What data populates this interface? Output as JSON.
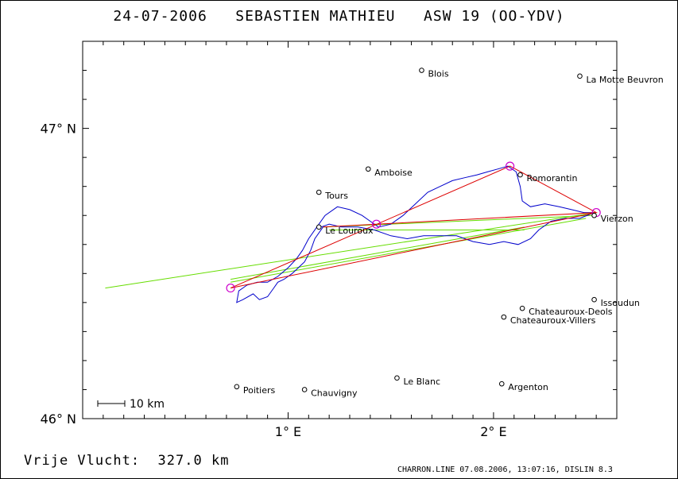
{
  "title": "24-07-2006   SEBASTIEN MATHIEU   ASW 19 (OO-YDV)",
  "footer": {
    "distance_label": "Vrije Vlucht:",
    "distance_value": "327.0 km",
    "credit": "CHARRON.LINE 07.08.2006, 13:07:16, DISLIN 8.3"
  },
  "scale_bar_label": "10 km",
  "colors": {
    "track": "#0000cc",
    "task": "#dd0000",
    "optimization": "#66dd00",
    "turnpoint": "#cc00cc",
    "axis": "#000000"
  },
  "chart_data": {
    "type": "map",
    "xlim": [
      0.0,
      2.6
    ],
    "ylim": [
      46.0,
      47.3
    ],
    "x_ticks": [
      {
        "value": 1.0,
        "label": "1° E"
      },
      {
        "value": 2.0,
        "label": "2° E"
      }
    ],
    "y_ticks": [
      {
        "value": 47.0,
        "label": "47° N"
      },
      {
        "value": 46.0,
        "label": "46° N"
      }
    ],
    "cities": [
      {
        "name": "Blois",
        "lon": 1.65,
        "lat": 47.2
      },
      {
        "name": "La Motte Beuvron",
        "lon": 2.42,
        "lat": 47.18
      },
      {
        "name": "Amboise",
        "lon": 1.39,
        "lat": 46.86
      },
      {
        "name": "Romorantin",
        "lon": 2.13,
        "lat": 46.84
      },
      {
        "name": "Tours",
        "lon": 1.15,
        "lat": 46.78
      },
      {
        "name": "Vierzon",
        "lon": 2.49,
        "lat": 46.7
      },
      {
        "name": "Le Louroux",
        "lon": 1.15,
        "lat": 46.66
      },
      {
        "name": "Issoudun",
        "lon": 2.49,
        "lat": 46.41
      },
      {
        "name": "Chateauroux-Deols",
        "lon": 2.14,
        "lat": 46.38
      },
      {
        "name": "Chateauroux-Villers",
        "lon": 2.05,
        "lat": 46.35
      },
      {
        "name": "Le Blanc",
        "lon": 1.53,
        "lat": 46.14
      },
      {
        "name": "Argenton",
        "lon": 2.04,
        "lat": 46.12
      },
      {
        "name": "Poitiers",
        "lon": 0.75,
        "lat": 46.11
      },
      {
        "name": "Chauvigny",
        "lon": 1.08,
        "lat": 46.1
      }
    ],
    "turnpoints": [
      {
        "lon": 0.72,
        "lat": 46.45
      },
      {
        "lon": 1.43,
        "lat": 46.67
      },
      {
        "lon": 2.08,
        "lat": 46.87
      },
      {
        "lon": 2.5,
        "lat": 46.71
      }
    ],
    "task_route": [
      {
        "lon": 0.72,
        "lat": 46.45
      },
      {
        "lon": 2.08,
        "lat": 46.87
      },
      {
        "lon": 2.5,
        "lat": 46.71
      },
      {
        "lon": 1.43,
        "lat": 46.67
      },
      {
        "lon": 1.17,
        "lat": 46.66
      },
      {
        "lon": 2.5,
        "lat": 46.71
      },
      {
        "lon": 0.72,
        "lat": 46.45
      }
    ],
    "optimization_lines": [
      [
        {
          "lon": 0.11,
          "lat": 46.45
        },
        {
          "lon": 2.5,
          "lat": 46.71
        }
      ],
      [
        {
          "lon": 0.72,
          "lat": 46.47
        },
        {
          "lon": 2.45,
          "lat": 46.69
        }
      ],
      [
        {
          "lon": 0.72,
          "lat": 46.48
        },
        {
          "lon": 2.15,
          "lat": 46.66
        }
      ],
      [
        {
          "lon": 1.17,
          "lat": 46.66
        },
        {
          "lon": 2.48,
          "lat": 46.7
        }
      ],
      [
        {
          "lon": 1.2,
          "lat": 46.65
        },
        {
          "lon": 2.15,
          "lat": 46.65
        }
      ]
    ],
    "flight_track": [
      {
        "lon": 1.17,
        "lat": 46.66
      },
      {
        "lon": 1.13,
        "lat": 46.62
      },
      {
        "lon": 1.11,
        "lat": 46.58
      },
      {
        "lon": 1.08,
        "lat": 46.54
      },
      {
        "lon": 1.05,
        "lat": 46.52
      },
      {
        "lon": 1.02,
        "lat": 46.5
      },
      {
        "lon": 0.98,
        "lat": 46.48
      },
      {
        "lon": 0.95,
        "lat": 46.47
      },
      {
        "lon": 0.93,
        "lat": 46.45
      },
      {
        "lon": 0.9,
        "lat": 46.42
      },
      {
        "lon": 0.86,
        "lat": 46.41
      },
      {
        "lon": 0.83,
        "lat": 46.43
      },
      {
        "lon": 0.78,
        "lat": 46.41
      },
      {
        "lon": 0.75,
        "lat": 46.4
      },
      {
        "lon": 0.76,
        "lat": 46.44
      },
      {
        "lon": 0.8,
        "lat": 46.46
      },
      {
        "lon": 0.85,
        "lat": 46.47
      },
      {
        "lon": 0.9,
        "lat": 46.47
      },
      {
        "lon": 0.95,
        "lat": 46.49
      },
      {
        "lon": 1.0,
        "lat": 46.52
      },
      {
        "lon": 1.04,
        "lat": 46.55
      },
      {
        "lon": 1.07,
        "lat": 46.58
      },
      {
        "lon": 1.1,
        "lat": 46.62
      },
      {
        "lon": 1.14,
        "lat": 46.66
      },
      {
        "lon": 1.18,
        "lat": 46.7
      },
      {
        "lon": 1.24,
        "lat": 46.73
      },
      {
        "lon": 1.3,
        "lat": 46.72
      },
      {
        "lon": 1.36,
        "lat": 46.7
      },
      {
        "lon": 1.4,
        "lat": 46.68
      },
      {
        "lon": 1.44,
        "lat": 46.66
      },
      {
        "lon": 1.5,
        "lat": 46.67
      },
      {
        "lon": 1.56,
        "lat": 46.7
      },
      {
        "lon": 1.62,
        "lat": 46.74
      },
      {
        "lon": 1.68,
        "lat": 46.78
      },
      {
        "lon": 1.74,
        "lat": 46.8
      },
      {
        "lon": 1.8,
        "lat": 46.82
      },
      {
        "lon": 1.86,
        "lat": 46.83
      },
      {
        "lon": 1.92,
        "lat": 46.84
      },
      {
        "lon": 1.97,
        "lat": 46.85
      },
      {
        "lon": 2.02,
        "lat": 46.86
      },
      {
        "lon": 2.07,
        "lat": 46.87
      },
      {
        "lon": 2.11,
        "lat": 46.85
      },
      {
        "lon": 2.13,
        "lat": 46.8
      },
      {
        "lon": 2.14,
        "lat": 46.75
      },
      {
        "lon": 2.18,
        "lat": 46.73
      },
      {
        "lon": 2.25,
        "lat": 46.74
      },
      {
        "lon": 2.32,
        "lat": 46.73
      },
      {
        "lon": 2.38,
        "lat": 46.72
      },
      {
        "lon": 2.44,
        "lat": 46.71
      },
      {
        "lon": 2.49,
        "lat": 46.71
      },
      {
        "lon": 2.42,
        "lat": 46.69
      },
      {
        "lon": 2.35,
        "lat": 46.69
      },
      {
        "lon": 2.28,
        "lat": 46.68
      },
      {
        "lon": 2.22,
        "lat": 46.65
      },
      {
        "lon": 2.18,
        "lat": 46.62
      },
      {
        "lon": 2.12,
        "lat": 46.6
      },
      {
        "lon": 2.05,
        "lat": 46.61
      },
      {
        "lon": 1.98,
        "lat": 46.6
      },
      {
        "lon": 1.9,
        "lat": 46.61
      },
      {
        "lon": 1.82,
        "lat": 46.63
      },
      {
        "lon": 1.74,
        "lat": 46.63
      },
      {
        "lon": 1.66,
        "lat": 46.63
      },
      {
        "lon": 1.58,
        "lat": 46.62
      },
      {
        "lon": 1.5,
        "lat": 46.63
      },
      {
        "lon": 1.42,
        "lat": 46.65
      },
      {
        "lon": 1.34,
        "lat": 46.66
      },
      {
        "lon": 1.26,
        "lat": 46.66
      },
      {
        "lon": 1.2,
        "lat": 46.67
      },
      {
        "lon": 1.16,
        "lat": 46.66
      }
    ]
  }
}
